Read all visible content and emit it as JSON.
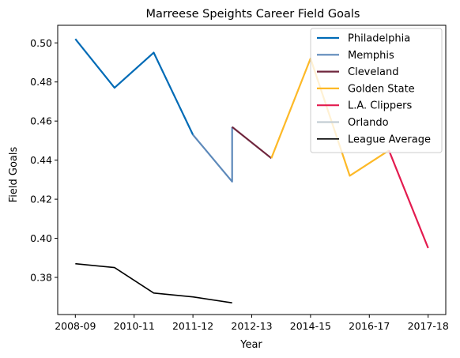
{
  "chart_data": {
    "type": "line",
    "title": "Marreese Speights Career Field Goals",
    "xlabel": "Year",
    "ylabel": "Field Goals",
    "xlim": [
      -0.45,
      9.45
    ],
    "ylim": [
      0.361,
      0.509
    ],
    "x_ticks": [
      {
        "x": 0,
        "label": "2008-09"
      },
      {
        "x": 1.5,
        "label": "2010-11"
      },
      {
        "x": 3,
        "label": "2011-12"
      },
      {
        "x": 4.5,
        "label": "2012-13"
      },
      {
        "x": 6,
        "label": "2014-15"
      },
      {
        "x": 7.5,
        "label": "2016-17"
      },
      {
        "x": 9,
        "label": "2017-18"
      }
    ],
    "y_ticks": [
      {
        "y": 0.38,
        "label": "0.38"
      },
      {
        "y": 0.4,
        "label": "0.40"
      },
      {
        "y": 0.42,
        "label": "0.42"
      },
      {
        "y": 0.44,
        "label": "0.44"
      },
      {
        "y": 0.46,
        "label": "0.46"
      },
      {
        "y": 0.48,
        "label": "0.48"
      },
      {
        "y": 0.5,
        "label": "0.50"
      }
    ],
    "grid": false,
    "legend_position": "top-right",
    "series": [
      {
        "name": "Philadelphia",
        "color": "#006BB6",
        "width": 2.2,
        "points": [
          [
            0,
            0.502
          ],
          [
            1,
            0.477
          ],
          [
            2,
            0.495
          ],
          [
            3,
            0.453
          ]
        ]
      },
      {
        "name": "Memphis",
        "color": "#5D89BA",
        "width": 2.2,
        "points": [
          [
            3,
            0.453
          ],
          [
            4,
            0.429
          ],
          [
            4,
            0.457
          ]
        ]
      },
      {
        "name": "Cleveland",
        "color": "#6F263D",
        "width": 2.2,
        "points": [
          [
            4,
            0.457
          ],
          [
            5,
            0.441
          ]
        ]
      },
      {
        "name": "Golden State",
        "color": "#FDB927",
        "width": 2.2,
        "points": [
          [
            5,
            0.441
          ],
          [
            6,
            0.492
          ],
          [
            7,
            0.432
          ],
          [
            8,
            0.445
          ]
        ]
      },
      {
        "name": "L.A. Clippers",
        "color": "#E31B4F",
        "width": 2.2,
        "points": [
          [
            8,
            0.445
          ],
          [
            9,
            0.395
          ]
        ]
      },
      {
        "name": "Orlando",
        "color": "#C4CED4",
        "width": 2.2,
        "points": []
      },
      {
        "name": "League Average",
        "color": "#000000",
        "width": 1.6,
        "points": [
          [
            0,
            0.387
          ],
          [
            1,
            0.385
          ],
          [
            2,
            0.372
          ],
          [
            3,
            0.37
          ],
          [
            4,
            0.367
          ]
        ]
      }
    ]
  }
}
